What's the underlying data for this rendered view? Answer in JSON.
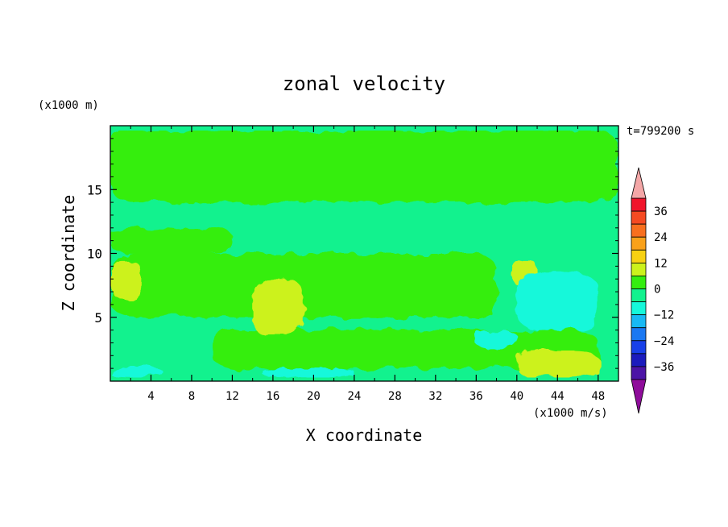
{
  "chart_data": {
    "type": "heatmap",
    "title": "zonal velocity",
    "xlabel": "X coordinate",
    "ylabel": "Z coordinate",
    "y_unit": "(x1000 m)",
    "time_label": "t=799200 s",
    "colorbar_unit": "(x1000 m/s)",
    "xlim": [
      0,
      50
    ],
    "ylim": [
      0,
      20
    ],
    "x_ticks": [
      "4",
      "8",
      "12",
      "16",
      "20",
      "24",
      "28",
      "32",
      "36",
      "40",
      "44",
      "48"
    ],
    "y_ticks": [
      "5",
      "10",
      "15"
    ],
    "colorbar": {
      "ticks": [
        "36",
        "24",
        "12",
        "0",
        "−12",
        "−24",
        "−36"
      ],
      "tick_values": [
        36,
        24,
        12,
        0,
        -12,
        -24,
        -36
      ],
      "range": [
        -42,
        42
      ],
      "levels": [
        {
          "value": 39,
          "color": "#f0142a"
        },
        {
          "value": 33,
          "color": "#f54a22"
        },
        {
          "value": 27,
          "color": "#f86f1e"
        },
        {
          "value": 21,
          "color": "#f9a11a"
        },
        {
          "value": 15,
          "color": "#f7d112"
        },
        {
          "value": 9,
          "color": "#ccf21c"
        },
        {
          "value": 3,
          "color": "#35ee10"
        },
        {
          "value": -3,
          "color": "#12f28e"
        },
        {
          "value": -9,
          "color": "#15f8da"
        },
        {
          "value": -15,
          "color": "#18b9f4"
        },
        {
          "value": -21,
          "color": "#1a78f2"
        },
        {
          "value": -27,
          "color": "#1840e8"
        },
        {
          "value": -33,
          "color": "#1b1bbd"
        },
        {
          "value": -39,
          "color": "#4c14a6"
        }
      ],
      "overflow_high_color": "#f4a7a7",
      "overflow_low_color": "#8f0c9b"
    },
    "background_color": "#12f28e",
    "regions": [
      {
        "value": 3,
        "x": [
          0,
          50
        ],
        "z": [
          14,
          19.6
        ]
      },
      {
        "value": 3,
        "x": [
          0,
          12
        ],
        "z": [
          10,
          12
        ]
      },
      {
        "value": 3,
        "x": [
          0,
          38
        ],
        "z": [
          5,
          10
        ]
      },
      {
        "value": 3,
        "x": [
          10,
          48
        ],
        "z": [
          1,
          4
        ]
      },
      {
        "value": 9,
        "x": [
          0,
          3
        ],
        "z": [
          6.5,
          9.5
        ]
      },
      {
        "value": 9,
        "x": [
          14,
          19
        ],
        "z": [
          3.5,
          8
        ]
      },
      {
        "value": 9,
        "x": [
          39.5,
          42
        ],
        "z": [
          7.5,
          9.5
        ]
      },
      {
        "value": 9,
        "x": [
          40,
          48
        ],
        "z": [
          0.3,
          2.4
        ]
      },
      {
        "value": -9,
        "x": [
          40,
          48
        ],
        "z": [
          4,
          8.5
        ]
      },
      {
        "value": -9,
        "x": [
          36,
          40
        ],
        "z": [
          2.5,
          4
        ]
      },
      {
        "value": -9,
        "x": [
          0,
          5
        ],
        "z": [
          0.3,
          1.2
        ]
      },
      {
        "value": -9,
        "x": [
          15,
          24
        ],
        "z": [
          0.3,
          1.0
        ]
      }
    ]
  }
}
